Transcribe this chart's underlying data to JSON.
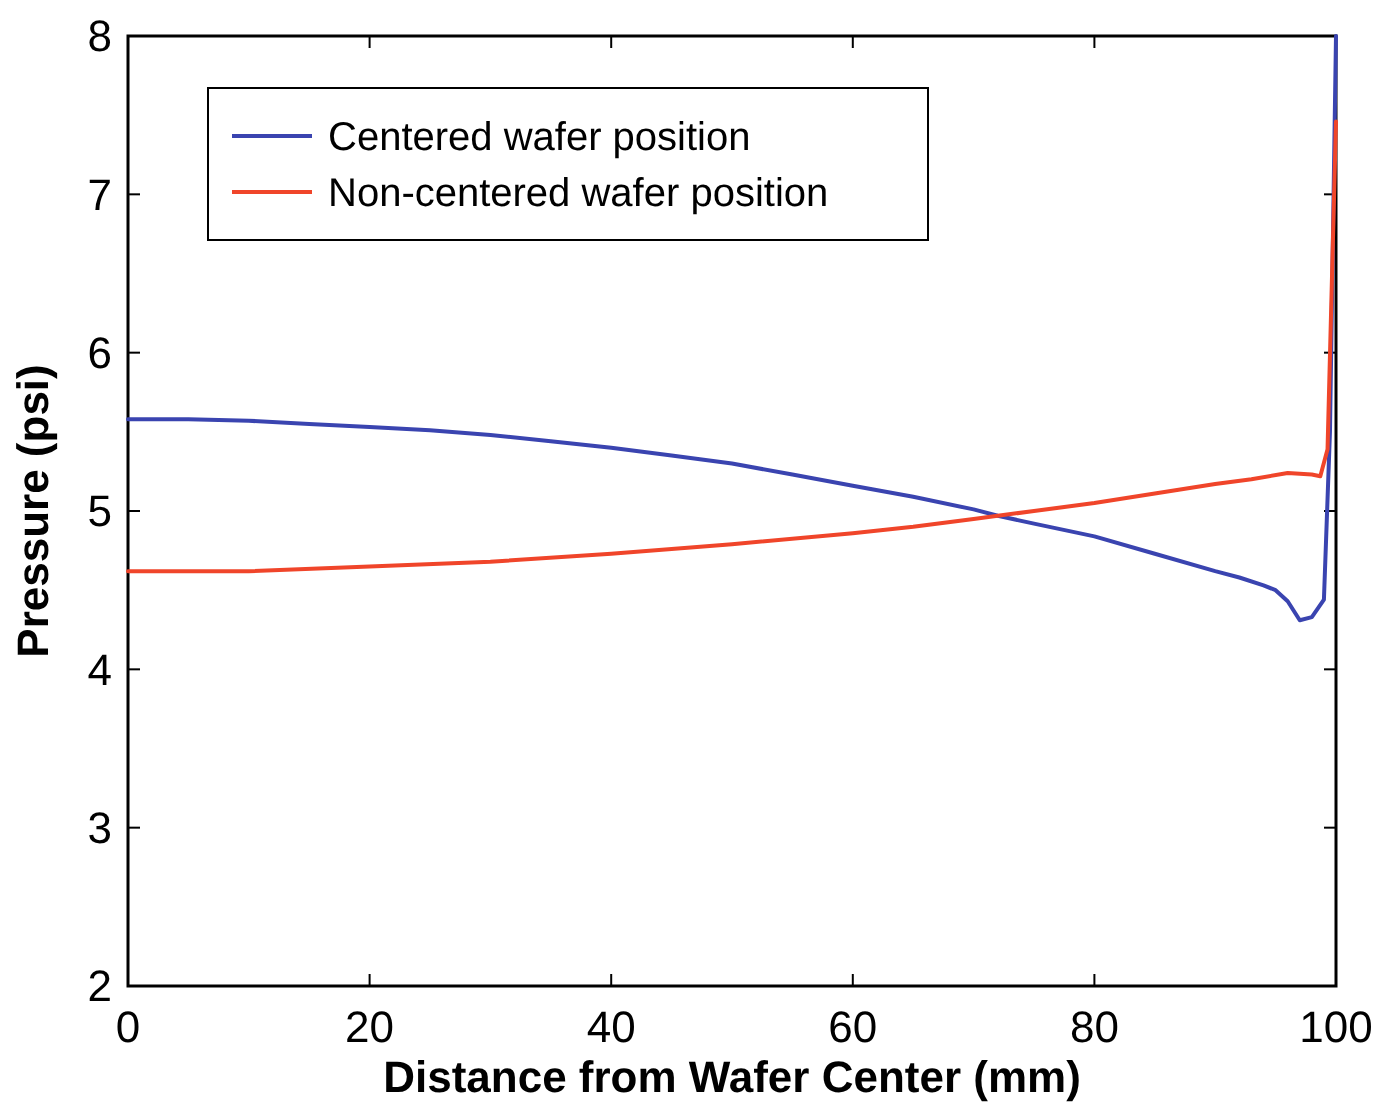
{
  "chart_data": {
    "type": "line",
    "xlabel": "Distance from Wafer Center (mm)",
    "ylabel": "Pressure (psi)",
    "xlim": [
      0,
      100
    ],
    "ylim": [
      2,
      8
    ],
    "xticks": [
      0,
      20,
      40,
      60,
      80,
      100
    ],
    "yticks": [
      2,
      3,
      4,
      5,
      6,
      7,
      8
    ],
    "grid": false,
    "legend": "top left",
    "line_style": "solid",
    "marker": "none",
    "series": [
      {
        "name": "Centered wafer position",
        "color": "#3a44b0",
        "x": [
          0,
          5,
          10,
          15,
          20,
          25,
          30,
          35,
          40,
          45,
          50,
          55,
          60,
          65,
          70,
          72,
          75,
          80,
          85,
          90,
          92,
          94,
          95,
          96,
          97,
          98,
          99,
          99.5,
          100
        ],
        "values": [
          5.58,
          5.58,
          5.57,
          5.55,
          5.53,
          5.51,
          5.48,
          5.44,
          5.4,
          5.35,
          5.3,
          5.23,
          5.16,
          5.09,
          5.01,
          4.97,
          4.92,
          4.84,
          4.73,
          4.62,
          4.58,
          4.53,
          4.5,
          4.43,
          4.31,
          4.33,
          4.44,
          5.5,
          8
        ]
      },
      {
        "name": "Non-centered wafer position",
        "color": "#f0452a",
        "x": [
          0,
          10,
          20,
          30,
          40,
          50,
          60,
          65,
          70,
          72,
          75,
          80,
          85,
          90,
          93,
          96,
          98,
          98.7,
          99.3,
          100
        ],
        "values": [
          4.62,
          4.62,
          4.65,
          4.68,
          4.73,
          4.79,
          4.86,
          4.9,
          4.95,
          4.97,
          5.0,
          5.05,
          5.11,
          5.17,
          5.2,
          5.24,
          5.23,
          5.22,
          5.39,
          7.46
        ]
      }
    ]
  }
}
